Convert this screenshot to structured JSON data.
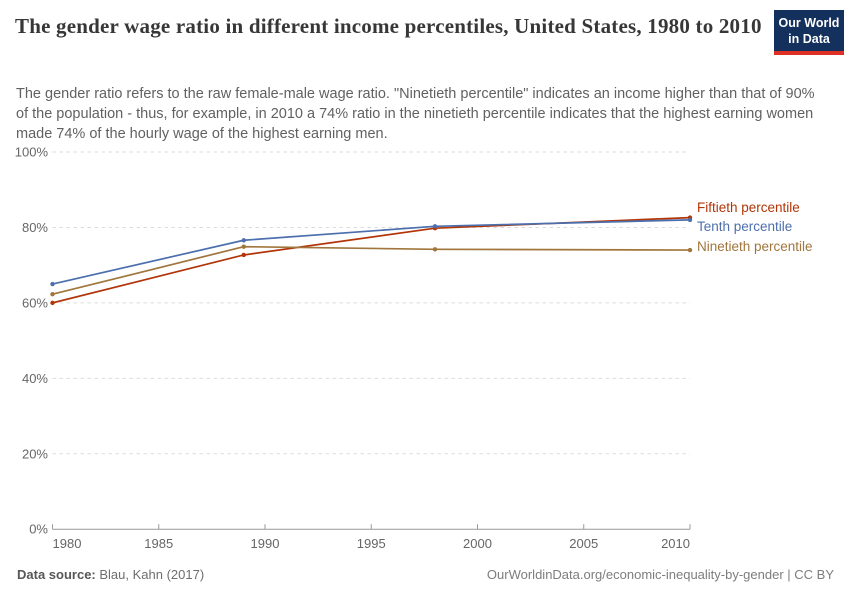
{
  "header": {
    "title": "The gender wage ratio in different income percentiles, United States, 1980 to 2010",
    "subtitle": "The gender ratio refers to the raw female-male wage ratio. \"Ninetieth percentile\" indicates an income higher than that of 90% of the population - thus, for example, in 2010 a 74% ratio in the ninetieth percentile indicates that the highest earning women made 74% of the hourly wage of the highest earning men.",
    "logo": {
      "line1": "Our World",
      "line2": "in Data",
      "bg_color": "#14305C",
      "stripe_color": "#DC3124"
    }
  },
  "chart_data": {
    "type": "line",
    "title": "The gender wage ratio in different income percentiles, United States, 1980 to 2010",
    "x": [
      1980,
      1989,
      1998,
      2010
    ],
    "series": [
      {
        "name": "Fiftieth percentile",
        "color": "#B13507",
        "values": [
          60.0,
          72.7,
          79.8,
          82.6
        ]
      },
      {
        "name": "Tenth percentile",
        "color": "#4C6FAD",
        "values": [
          65.0,
          76.6,
          80.3,
          82.0
        ]
      },
      {
        "name": "Ninetieth percentile",
        "color": "#A0763C",
        "values": [
          62.3,
          74.9,
          74.2,
          74.0
        ]
      }
    ],
    "xlabel": "",
    "ylabel": "",
    "xlim": [
      1980,
      2010
    ],
    "ylim": [
      0,
      100
    ],
    "xticks": [
      1980,
      1985,
      1990,
      1995,
      2000,
      2005,
      2010
    ],
    "yticks": [
      0,
      20,
      40,
      60,
      80,
      100
    ],
    "ytick_suffix": "%",
    "grid": "horizontal-dashed",
    "grid_color": "#DCDCDC",
    "axis_color": "#999999",
    "tick_label_color": "#666666",
    "legend_position": "right-of-line-ends"
  },
  "footer": {
    "source_label": "Data source:",
    "source_value": " Blau, Kahn (2017)",
    "link": "OurWorldinData.org/economic-inequality-by-gender | CC BY"
  }
}
